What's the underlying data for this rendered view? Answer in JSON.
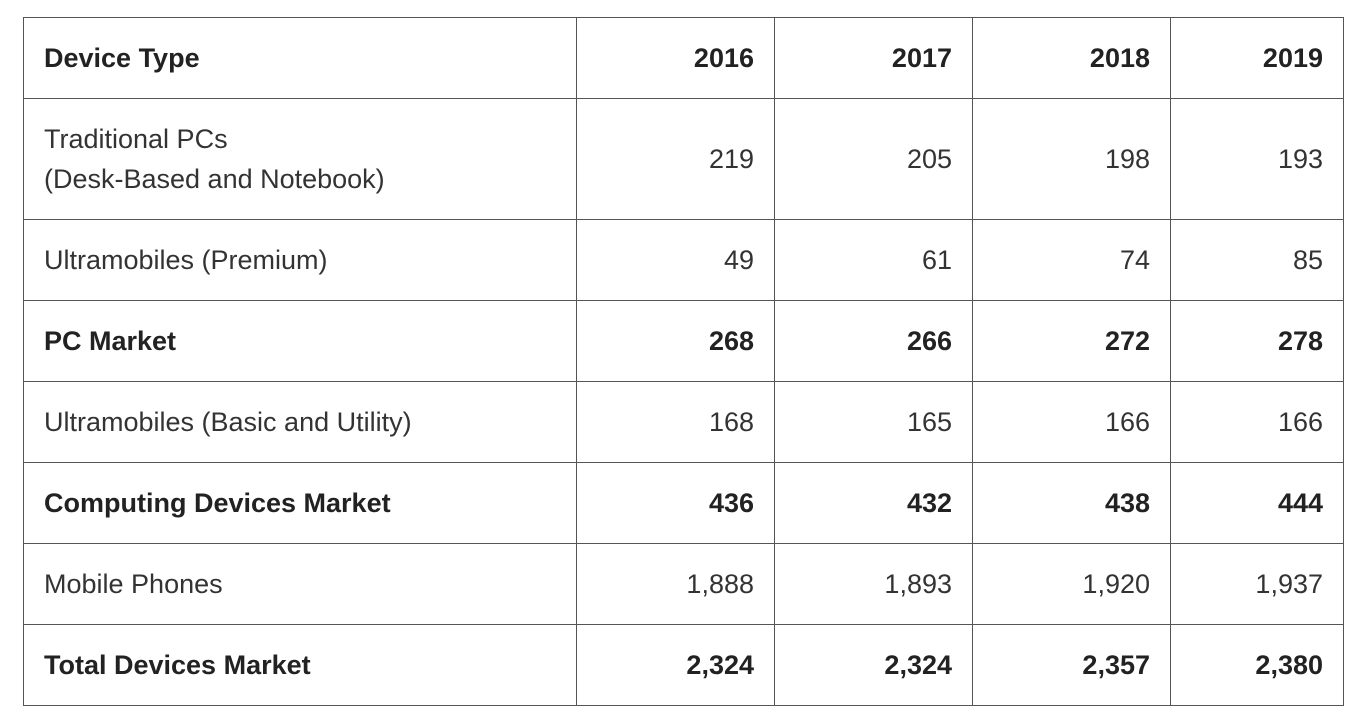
{
  "table": {
    "headers": [
      "Device Type",
      "2016",
      "2017",
      "2018",
      "2019"
    ],
    "rows": [
      {
        "label": [
          "Traditional PCs",
          "(Desk-Based and Notebook)"
        ],
        "values": [
          "219",
          "205",
          "198",
          "193"
        ],
        "bold": false
      },
      {
        "label": [
          "Ultramobiles (Premium)"
        ],
        "values": [
          "49",
          "61",
          "74",
          "85"
        ],
        "bold": false
      },
      {
        "label": [
          "PC Market"
        ],
        "values": [
          "268",
          "266",
          "272",
          "278"
        ],
        "bold": true
      },
      {
        "label": [
          "Ultramobiles (Basic and Utility)"
        ],
        "values": [
          "168",
          "165",
          "166",
          "166"
        ],
        "bold": false
      },
      {
        "label": [
          "Computing Devices Market"
        ],
        "values": [
          "436",
          "432",
          "438",
          "444"
        ],
        "bold": true
      },
      {
        "label": [
          "Mobile Phones"
        ],
        "values": [
          "1,888",
          "1,893",
          "1,920",
          "1,937"
        ],
        "bold": false
      },
      {
        "label": [
          "Total Devices Market"
        ],
        "values": [
          "2,324",
          "2,324",
          "2,357",
          "2,380"
        ],
        "bold": true
      }
    ]
  },
  "colors": {
    "border": "#555555",
    "text": "#333333",
    "background": "#ffffff"
  }
}
